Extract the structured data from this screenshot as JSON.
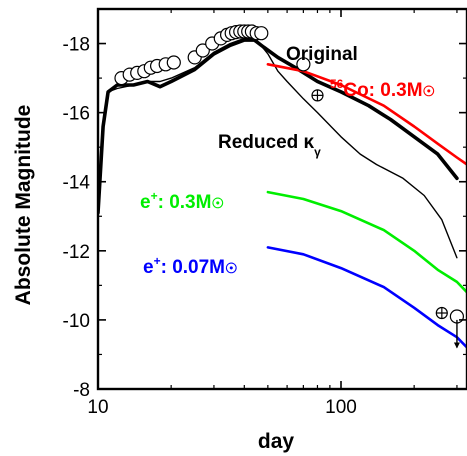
{
  "chart_data": {
    "type": "line",
    "xlabel": "day",
    "ylabel": "Absolute Magnitude",
    "x_scale": "log",
    "xlim": [
      10,
      330
    ],
    "ylim": [
      -8,
      -19
    ],
    "y_inverted": true,
    "x_ticks": [
      "10",
      "100"
    ],
    "y_ticks": [
      "-8",
      "-10",
      "-12",
      "-14",
      "-16",
      "-18"
    ],
    "series": [
      {
        "name": "Original",
        "color": "#000000",
        "style": "thick",
        "x": [
          10,
          10.5,
          11,
          12,
          14,
          16,
          18,
          20,
          25,
          30,
          35,
          40,
          44,
          48,
          55,
          65,
          80,
          100,
          130,
          160,
          200,
          250,
          300
        ],
        "y": [
          -13.1,
          -15.6,
          -16.6,
          -16.8,
          -16.8,
          -16.9,
          -16.75,
          -16.9,
          -17.25,
          -17.7,
          -17.95,
          -18.1,
          -18.1,
          -17.9,
          -17.6,
          -17.3,
          -16.9,
          -16.6,
          -16.2,
          -15.8,
          -15.3,
          -14.8,
          -14.1
        ]
      },
      {
        "name": "Reduced κγ",
        "color": "#000000",
        "style": "thin",
        "x": [
          10,
          10.5,
          11,
          12,
          14,
          16,
          18,
          20,
          25,
          30,
          35,
          40,
          45,
          50,
          55,
          60,
          70,
          80,
          100,
          120,
          140,
          180,
          220,
          260,
          300
        ],
        "y": [
          -13.2,
          -15.6,
          -16.6,
          -16.7,
          -16.8,
          -16.9,
          -16.9,
          -17.0,
          -17.3,
          -17.75,
          -18.0,
          -18.15,
          -18.1,
          -17.7,
          -17.2,
          -16.9,
          -16.4,
          -16.0,
          -15.3,
          -14.8,
          -14.5,
          -14.1,
          -13.6,
          -12.9,
          -11.8
        ]
      },
      {
        "name": "56Co: 0.3M☉",
        "color": "#ff0000",
        "x": [
          50,
          70,
          100,
          150,
          200,
          250,
          300,
          330
        ],
        "y": [
          -17.4,
          -17.2,
          -16.8,
          -16.2,
          -15.6,
          -15.1,
          -14.7,
          -14.5
        ]
      },
      {
        "name": "e+: 0.3M☉",
        "color": "#00ee00",
        "x": [
          50,
          70,
          100,
          150,
          200,
          250,
          300,
          330
        ],
        "y": [
          -13.7,
          -13.5,
          -13.15,
          -12.6,
          -12.0,
          -11.45,
          -11.1,
          -10.8
        ]
      },
      {
        "name": "e+: 0.07M☉",
        "color": "#0000ff",
        "x": [
          50,
          70,
          100,
          150,
          200,
          250,
          300,
          330
        ],
        "y": [
          -12.1,
          -11.9,
          -11.5,
          -10.95,
          -10.35,
          -9.85,
          -9.5,
          -9.2
        ]
      }
    ],
    "observations": {
      "marker": "open-circle",
      "x": [
        12.5,
        13.5,
        14.5,
        15.5,
        16.5,
        17.5,
        19,
        20.5,
        25,
        27,
        29.5,
        32,
        34,
        35.5,
        37,
        38.5,
        40,
        41.5,
        43,
        45,
        47,
        70,
        300
      ],
      "y": [
        -17.0,
        -17.1,
        -17.15,
        -17.2,
        -17.3,
        -17.35,
        -17.4,
        -17.45,
        -17.6,
        -17.8,
        -18.0,
        -18.15,
        -18.25,
        -18.3,
        -18.33,
        -18.35,
        -18.35,
        -18.35,
        -18.35,
        -18.3,
        -18.3,
        -17.4,
        -10.1
      ]
    },
    "earth_markers": {
      "marker": "circled-plus",
      "x": [
        80,
        260
      ],
      "y": [
        -16.5,
        -10.2
      ]
    },
    "upper_limit": {
      "x": 300,
      "y_from": -10.0,
      "y_to": -9.2
    }
  },
  "annotations": {
    "original": "Original",
    "co_sup": "56",
    "co_label": "Co: 0.3M",
    "reduced": "Reduced κ",
    "reduced_sub": "γ",
    "ep1_main": "e",
    "ep1_sup": "+",
    "ep1_rest": ": 0.3M",
    "ep2_main": "e",
    "ep2_sup": "+",
    "ep2_rest": ": 0.07M",
    "sun_symbol": "☉"
  }
}
